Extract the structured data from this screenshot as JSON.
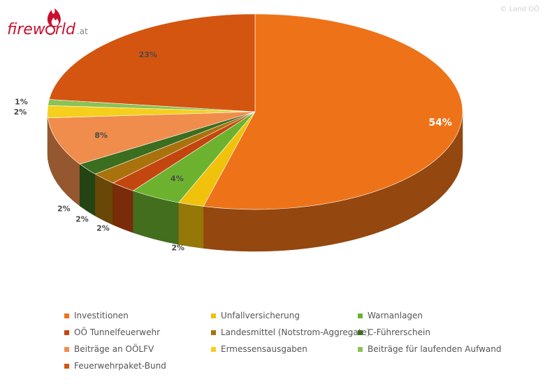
{
  "brand": {
    "logo_text": "firew",
    "logo_text2": "rld",
    "logo_suffix": ".at",
    "copyright": "© Land OÖ"
  },
  "chart_data": {
    "type": "pie",
    "title": "",
    "legend_position": "bottom",
    "slices": [
      {
        "name": "Investitionen",
        "value": 54,
        "label": "54%",
        "color": "#ee7318"
      },
      {
        "name": "Unfallversicherung",
        "value": 2,
        "label": "2%",
        "color": "#f0c20c"
      },
      {
        "name": "Warnanlagen",
        "value": 4,
        "label": "4%",
        "color": "#6cb22f"
      },
      {
        "name": "OÖ Tunnelfeuerwehr",
        "value": 2,
        "label": "2%",
        "color": "#c4460f"
      },
      {
        "name": "Landesmittel (Notstrom-Aggregate)",
        "value": 2,
        "label": "2%",
        "color": "#a9720c"
      },
      {
        "name": "C-Führerschein",
        "value": 2,
        "label": "2%",
        "color": "#3c6e1f"
      },
      {
        "name": "Beiträge an OÖLFV",
        "value": 8,
        "label": "8%",
        "color": "#f08d4c"
      },
      {
        "name": "Ermessensausgaben",
        "value": 2,
        "label": "2%",
        "color": "#f5cf1c"
      },
      {
        "name": "Beiträge für laufenden Aufwand",
        "value": 1,
        "label": "1%",
        "color": "#8cc153"
      },
      {
        "name": "Feuerwehrpaket-Bund",
        "value": 23,
        "label": "23%",
        "color": "#d4550f"
      }
    ]
  }
}
